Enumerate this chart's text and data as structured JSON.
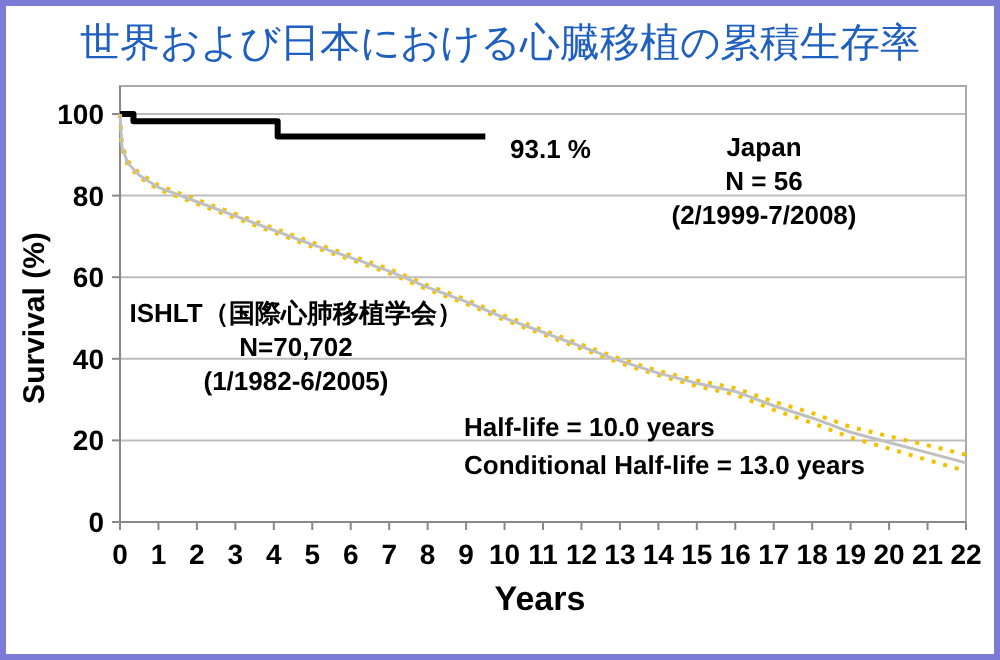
{
  "chart_data": {
    "type": "line",
    "title": "世界および日本における心臓移植の累積生存率",
    "xlabel": "Years",
    "ylabel": "Survival (%)",
    "xlim": [
      0,
      22
    ],
    "xticks": [
      0,
      1,
      2,
      3,
      4,
      5,
      6,
      7,
      8,
      9,
      10,
      11,
      12,
      13,
      14,
      15,
      16,
      17,
      18,
      19,
      20,
      21,
      22
    ],
    "ylim": [
      0,
      100
    ],
    "yticks": [
      0,
      20,
      40,
      60,
      80,
      100
    ],
    "grid": "y",
    "marker": "none",
    "series": [
      {
        "type": "step",
        "color": "#000000",
        "x": [
          0,
          0.35,
          4.1,
          9.5
        ],
        "values": [
          100,
          98.2,
          94.5,
          94.5
        ]
      },
      {
        "color": "#f2c200",
        "line_style": "dotted",
        "x": [
          0,
          0.05,
          0.2,
          0.5,
          1,
          2,
          3,
          4,
          5,
          6,
          7,
          8,
          9,
          10,
          11,
          12,
          13,
          14,
          15,
          16,
          17,
          18,
          19,
          20,
          21,
          22
        ],
        "values": [
          100,
          91.5,
          87.5,
          84.5,
          81.5,
          78,
          74.5,
          71,
          67.5,
          64.3,
          61,
          57,
          53.5,
          49.5,
          46,
          42.5,
          39,
          36,
          33.3,
          31.2,
          27.5,
          24.3,
          20.7,
          18,
          15.2,
          12.5
        ]
      },
      {
        "color": "#f2c200",
        "line_style": "dotted",
        "x": [
          0,
          0.05,
          0.2,
          0.5,
          1,
          2,
          3,
          4,
          5,
          6,
          7,
          8,
          9,
          10,
          11,
          12,
          13,
          14,
          15,
          16,
          17,
          18,
          19,
          20,
          21,
          22
        ],
        "values": [
          100,
          92.5,
          88.5,
          85.5,
          82.5,
          79,
          75.5,
          72,
          68.5,
          65.3,
          62,
          58,
          54.5,
          50.5,
          47,
          43.5,
          40,
          37,
          34.7,
          32.8,
          29.5,
          26.7,
          23.3,
          21,
          18.8,
          16.5
        ]
      },
      {
        "color": "#c0c0c0",
        "line_style": "solid",
        "x": [
          0,
          0.05,
          0.2,
          0.5,
          1,
          2,
          3,
          4,
          5,
          6,
          7,
          8,
          9,
          10,
          11,
          12,
          13,
          14,
          15,
          16,
          17,
          18,
          19,
          20,
          21,
          22
        ],
        "values": [
          100,
          92,
          88,
          85,
          82,
          78.5,
          75,
          71.5,
          68,
          64.8,
          61.5,
          57.5,
          54,
          50,
          46.5,
          43,
          39.5,
          36.5,
          34,
          32,
          28.5,
          25.5,
          22,
          19.5,
          17,
          14.5
        ]
      }
    ],
    "annotations": [
      "93.1 %",
      "Japan\nN = 56\n(2/1999-7/2008)",
      "ISHLT（国際心肺移植学会）\nN=70,702\n(1/1982-6/2005)",
      "Half-life = 10.0 years",
      "Conditional Half-life = 13.0 years"
    ]
  }
}
